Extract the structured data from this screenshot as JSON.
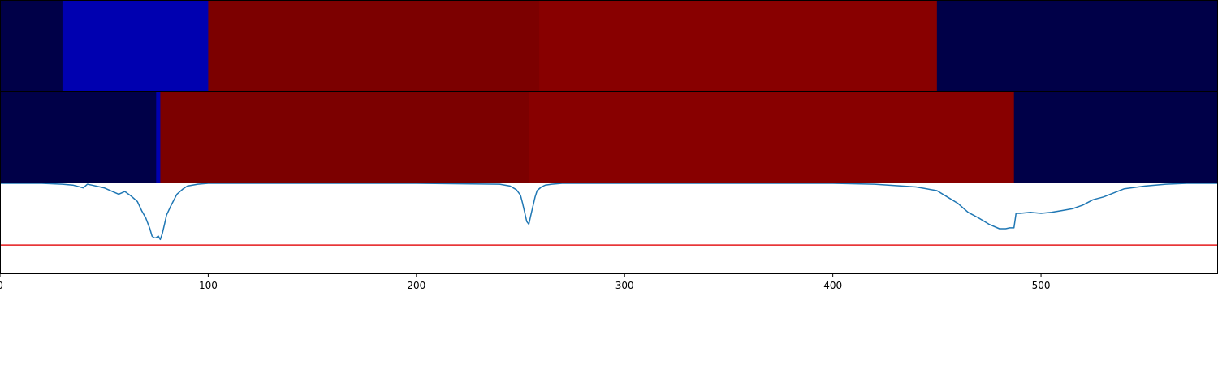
{
  "chart_data": [
    {
      "type": "heatmap",
      "xlim": [
        0,
        585
      ],
      "colors": {
        "dark_navy": "#000048",
        "medium_blue": "#0000b0",
        "dark_red": "#7c0000",
        "red": "#880000"
      },
      "segments": [
        {
          "start": 0,
          "end": 30,
          "color": "#000048"
        },
        {
          "start": 30,
          "end": 100,
          "color": "#0000b0"
        },
        {
          "start": 100,
          "end": 259,
          "color": "#7c0000"
        },
        {
          "start": 259,
          "end": 450,
          "color": "#880000"
        },
        {
          "start": 450,
          "end": 585,
          "color": "#000048"
        }
      ]
    },
    {
      "type": "heatmap",
      "xlim": [
        0,
        585
      ],
      "segments": [
        {
          "start": 0,
          "end": 75,
          "color": "#000048"
        },
        {
          "start": 75,
          "end": 77,
          "color": "#0000b0"
        },
        {
          "start": 77,
          "end": 254,
          "color": "#7c0000"
        },
        {
          "start": 254,
          "end": 487,
          "color": "#880000"
        },
        {
          "start": 487,
          "end": 585,
          "color": "#000048"
        }
      ]
    },
    {
      "type": "line",
      "xlim": [
        0,
        585
      ],
      "ylim": [
        -1,
        0
      ],
      "line_color": "#1f77b4",
      "threshold": {
        "value": -0.68,
        "color": "#e41a1c"
      },
      "x": [
        0,
        10,
        20,
        30,
        35,
        40,
        42,
        44,
        50,
        55,
        57,
        60,
        63,
        66,
        68,
        70,
        72,
        73,
        74,
        75,
        76,
        77,
        78,
        79,
        80,
        82,
        85,
        88,
        90,
        95,
        100,
        150,
        200,
        240,
        245,
        248,
        250,
        251,
        252,
        253,
        254,
        255,
        256,
        257,
        258,
        260,
        262,
        265,
        270,
        280,
        350,
        400,
        420,
        440,
        450,
        455,
        460,
        465,
        470,
        475,
        480,
        483,
        485,
        487,
        488,
        490,
        495,
        500,
        505,
        510,
        515,
        520,
        525,
        530,
        540,
        550,
        560,
        570,
        585
      ],
      "y": [
        0,
        0,
        0,
        -0.01,
        -0.02,
        -0.05,
        -0.01,
        -0.02,
        -0.05,
        -0.1,
        -0.12,
        -0.09,
        -0.14,
        -0.2,
        -0.3,
        -0.38,
        -0.5,
        -0.58,
        -0.6,
        -0.6,
        -0.58,
        -0.62,
        -0.55,
        -0.45,
        -0.35,
        -0.25,
        -0.12,
        -0.06,
        -0.03,
        -0.01,
        0,
        0,
        0,
        -0.01,
        -0.03,
        -0.07,
        -0.13,
        -0.22,
        -0.32,
        -0.42,
        -0.45,
        -0.35,
        -0.25,
        -0.15,
        -0.08,
        -0.04,
        -0.02,
        -0.01,
        0,
        0,
        0,
        0,
        -0.01,
        -0.04,
        -0.08,
        -0.15,
        -0.22,
        -0.32,
        -0.38,
        -0.45,
        -0.5,
        -0.5,
        -0.49,
        -0.49,
        -0.33,
        -0.33,
        -0.32,
        -0.33,
        -0.32,
        -0.3,
        -0.28,
        -0.24,
        -0.18,
        -0.15,
        -0.06,
        -0.03,
        -0.01,
        0,
        0
      ]
    }
  ],
  "x_axis": {
    "ticks": [
      0,
      100,
      200,
      300,
      400,
      500
    ],
    "tick_labels": [
      "0",
      "100",
      "200",
      "300",
      "400",
      "500"
    ]
  }
}
